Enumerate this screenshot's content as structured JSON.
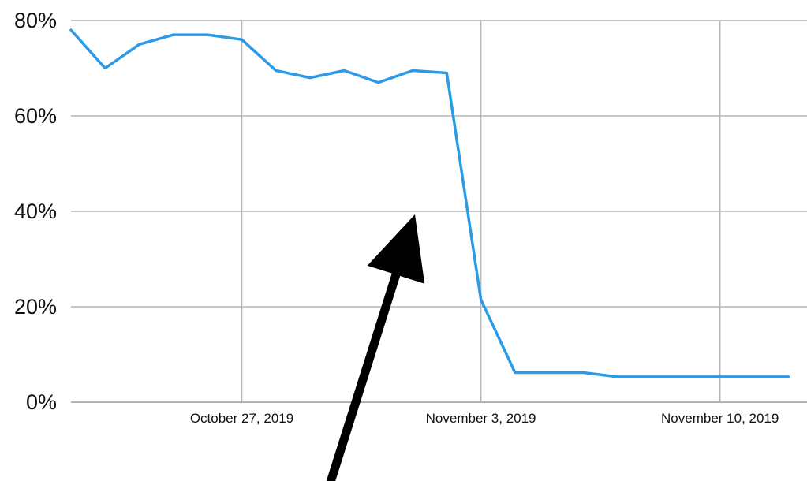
{
  "chart_data": {
    "type": "line",
    "title": "",
    "xlabel": "",
    "ylabel": "",
    "x_start": "2019-10-22",
    "x_step_days": 1,
    "y_unit": "%",
    "ylim": [
      0,
      80
    ],
    "y_ticks": [
      0,
      20,
      40,
      60,
      80
    ],
    "y_tick_labels": [
      "0%",
      "20%",
      "40%",
      "60%",
      "80%"
    ],
    "x_ticks": [
      {
        "date": "2019-10-27",
        "label": "October 27, 2019"
      },
      {
        "date": "2019-11-03",
        "label": "November 3, 2019"
      },
      {
        "date": "2019-11-10",
        "label": "November 10, 2019"
      }
    ],
    "grid": true,
    "legend": "none",
    "series": [
      {
        "color": "#2b9be8",
        "x": [
          "2019-10-22",
          "2019-10-23",
          "2019-10-24",
          "2019-10-25",
          "2019-10-26",
          "2019-10-27",
          "2019-10-28",
          "2019-10-29",
          "2019-10-30",
          "2019-10-31",
          "2019-11-01",
          "2019-11-02",
          "2019-11-03",
          "2019-11-04",
          "2019-11-05",
          "2019-11-06",
          "2019-11-07",
          "2019-11-08",
          "2019-11-09",
          "2019-11-10",
          "2019-11-11",
          "2019-11-12"
        ],
        "values": [
          78,
          70,
          75,
          77,
          77,
          76,
          69.5,
          68,
          69.5,
          67,
          69.5,
          69,
          21.5,
          6.2,
          6.2,
          6.2,
          5.3,
          5.3,
          5.3,
          5.3,
          5.3,
          5.3
        ]
      }
    ],
    "annotations": [
      {
        "type": "arrow",
        "color": "#000000",
        "points_to_date": "2019-11-01",
        "points_to_value": 40
      }
    ]
  }
}
